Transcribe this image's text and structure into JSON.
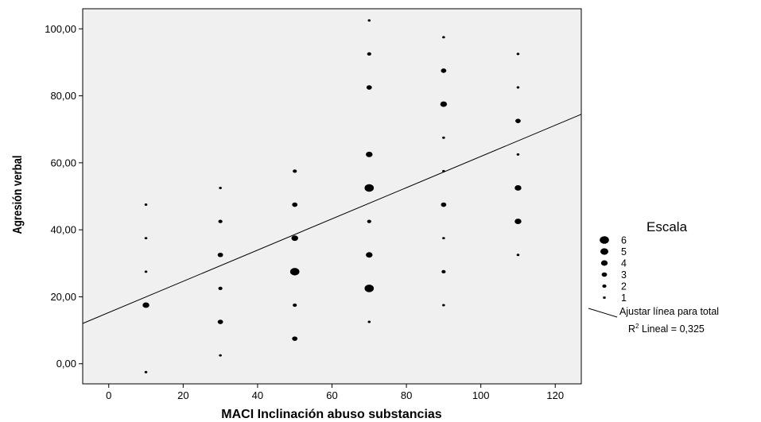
{
  "chart_data": {
    "type": "scatter",
    "title": "",
    "xlabel": "MACI Inclinación abuso substancias",
    "ylabel": "Agresión verbal",
    "xlim": [
      -7,
      127
    ],
    "ylim": [
      -6,
      106
    ],
    "x_ticks": [
      0,
      20,
      40,
      60,
      80,
      100,
      120
    ],
    "x_tick_labels": [
      "0",
      "20",
      "40",
      "60",
      "80",
      "100",
      "120"
    ],
    "y_ticks": [
      0,
      20,
      40,
      60,
      80,
      100
    ],
    "y_tick_labels": [
      "0,00",
      "20,00",
      "40,00",
      "60,00",
      "80,00",
      "100,00"
    ],
    "background": "#f0f0f0",
    "grid": false,
    "points": [
      {
        "x": 10,
        "y": 47.5,
        "count": 1
      },
      {
        "x": 10,
        "y": 37.5,
        "count": 1
      },
      {
        "x": 10,
        "y": 27.5,
        "count": 1
      },
      {
        "x": 10,
        "y": 17.5,
        "count": 4
      },
      {
        "x": 10,
        "y": -2.5,
        "count": 1
      },
      {
        "x": 30,
        "y": 52.5,
        "count": 1
      },
      {
        "x": 30,
        "y": 42.5,
        "count": 2
      },
      {
        "x": 30,
        "y": 32.5,
        "count": 3
      },
      {
        "x": 30,
        "y": 22.5,
        "count": 2
      },
      {
        "x": 30,
        "y": 12.5,
        "count": 3
      },
      {
        "x": 30,
        "y": 2.5,
        "count": 1
      },
      {
        "x": 50,
        "y": 57.5,
        "count": 2
      },
      {
        "x": 50,
        "y": 47.5,
        "count": 3
      },
      {
        "x": 50,
        "y": 37.5,
        "count": 4
      },
      {
        "x": 50,
        "y": 27.5,
        "count": 6
      },
      {
        "x": 50,
        "y": 17.5,
        "count": 2
      },
      {
        "x": 50,
        "y": 7.5,
        "count": 3
      },
      {
        "x": 70,
        "y": 102.5,
        "count": 1
      },
      {
        "x": 70,
        "y": 92.5,
        "count": 2
      },
      {
        "x": 70,
        "y": 82.5,
        "count": 3
      },
      {
        "x": 70,
        "y": 62.5,
        "count": 4
      },
      {
        "x": 70,
        "y": 52.5,
        "count": 6
      },
      {
        "x": 70,
        "y": 42.5,
        "count": 2
      },
      {
        "x": 70,
        "y": 32.5,
        "count": 4
      },
      {
        "x": 70,
        "y": 22.5,
        "count": 6
      },
      {
        "x": 70,
        "y": 12.5,
        "count": 1
      },
      {
        "x": 90,
        "y": 97.5,
        "count": 1
      },
      {
        "x": 90,
        "y": 87.5,
        "count": 3
      },
      {
        "x": 90,
        "y": 77.5,
        "count": 4
      },
      {
        "x": 90,
        "y": 67.5,
        "count": 1
      },
      {
        "x": 90,
        "y": 57.5,
        "count": 1
      },
      {
        "x": 90,
        "y": 47.5,
        "count": 3
      },
      {
        "x": 90,
        "y": 37.5,
        "count": 1
      },
      {
        "x": 90,
        "y": 27.5,
        "count": 2
      },
      {
        "x": 90,
        "y": 17.5,
        "count": 1
      },
      {
        "x": 110,
        "y": 92.5,
        "count": 1
      },
      {
        "x": 110,
        "y": 82.5,
        "count": 1
      },
      {
        "x": 110,
        "y": 72.5,
        "count": 3
      },
      {
        "x": 110,
        "y": 62.5,
        "count": 1
      },
      {
        "x": 110,
        "y": 52.5,
        "count": 4
      },
      {
        "x": 110,
        "y": 42.5,
        "count": 4
      },
      {
        "x": 110,
        "y": 32.5,
        "count": 1
      }
    ],
    "fit_line": {
      "type": "linear",
      "intercept": 15.3,
      "slope": 0.466,
      "x_range": [
        -7,
        127
      ]
    },
    "legend": {
      "position": "right",
      "title": "Escala",
      "sizes": [
        {
          "label": "6",
          "value": 6
        },
        {
          "label": "5",
          "value": 5
        },
        {
          "label": "4",
          "value": 4
        },
        {
          "label": "3",
          "value": 3
        },
        {
          "label": "2",
          "value": 2
        },
        {
          "label": "1",
          "value": 1
        }
      ],
      "fit_label": "Ajustar línea para total",
      "r2_prefix": "R",
      "r2_sup": "2",
      "r2_text": " Lineal = 0,325"
    }
  }
}
